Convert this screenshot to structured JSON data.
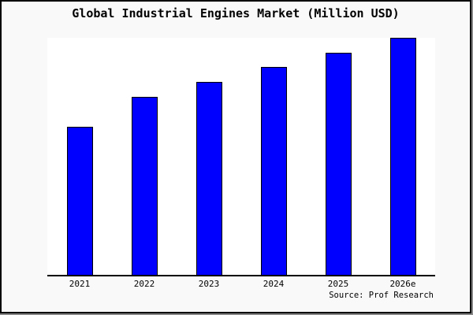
{
  "window": {
    "background": "#f9f9f9",
    "frame_border_color": "#000000",
    "frame_shadow_color": "#888888"
  },
  "title": "Global Industrial Engines Market (Million USD)",
  "source_note": "Source: Prof Research",
  "chart_data": {
    "type": "bar",
    "title": "Global Industrial Engines Market (Million USD)",
    "categories": [
      "2021",
      "2022",
      "2023",
      "2024",
      "2025",
      "2026e"
    ],
    "series": [
      {
        "name": "Global Industrial Engines Market",
        "values_relative_to_max_pct": [
          62.5,
          75.0,
          81.3,
          87.7,
          93.7,
          100
        ]
      }
    ],
    "value_note": "y-axis has no ticks, labels or gridlines; values estimated from bar heights relative to tallest bar (2026e = 100)",
    "xlabel": "",
    "ylabel": "",
    "y_axis_visible": false,
    "grid": false,
    "legend": {
      "visible": false
    },
    "bar_color": "#0000ff",
    "bar_border_color": "#000000",
    "plot_bg": "#ffffff",
    "axis_color": "#000000",
    "source_note": "Source: Prof Research"
  }
}
